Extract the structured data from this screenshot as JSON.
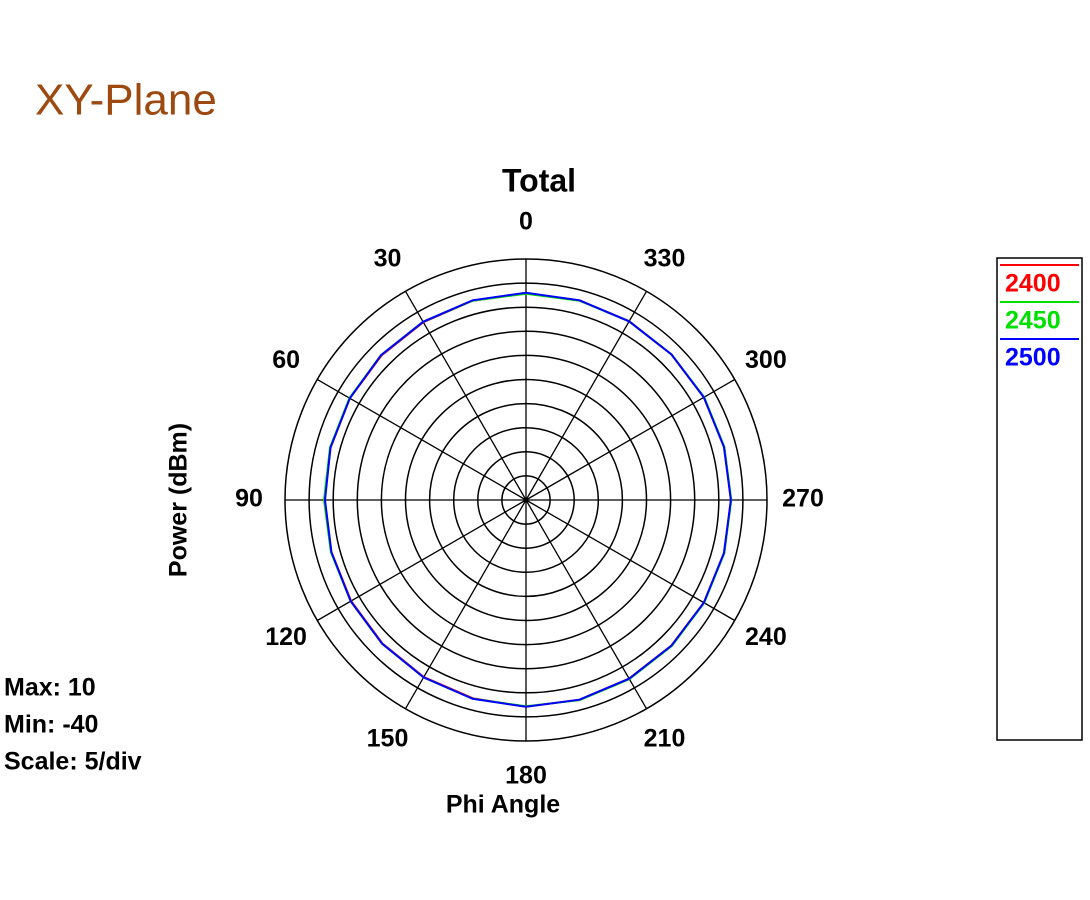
{
  "chart_data": {
    "type": "polar",
    "page_title": "XY-Plane",
    "title": "Total",
    "ylabel": "Power  (dBm)",
    "xlabel": "Phi Angle",
    "annotations": [
      "Max: 10",
      "Min: -40",
      "Scale: 5/div"
    ],
    "rlim": [
      -40,
      10
    ],
    "rticks": [
      -35,
      -30,
      -25,
      -20,
      -15,
      -10,
      -5,
      0,
      5,
      10
    ],
    "thetaticks": [
      0,
      30,
      60,
      90,
      120,
      150,
      180,
      210,
      240,
      270,
      300,
      330
    ],
    "theta_zero": "top",
    "theta_direction": "counterclockwise",
    "theta": [
      0,
      15,
      30,
      45,
      60,
      75,
      90,
      105,
      120,
      135,
      150,
      165,
      180,
      195,
      210,
      225,
      240,
      255,
      270,
      285,
      300,
      315,
      330,
      345
    ],
    "legend": "right",
    "series": [
      {
        "name": "2400",
        "color": "#ff0000",
        "values": [
          2.9,
          2.8,
          2.6,
          2.4,
          2.2,
          2.0,
          1.8,
          1.8,
          1.9,
          2.1,
          2.4,
          2.6,
          2.9,
          2.9,
          2.8,
          2.7,
          2.6,
          2.6,
          2.5,
          2.6,
          2.6,
          2.7,
          2.8,
          2.9
        ]
      },
      {
        "name": "2450",
        "color": "#00e000",
        "values": [
          2.8,
          2.8,
          2.7,
          2.5,
          2.3,
          2.1,
          1.9,
          1.9,
          2.0,
          2.2,
          2.5,
          2.7,
          2.8,
          3.0,
          2.9,
          2.8,
          2.7,
          2.6,
          2.6,
          2.6,
          2.7,
          2.7,
          2.8,
          2.8
        ]
      },
      {
        "name": "2500",
        "color": "#0000ff",
        "values": [
          3.0,
          2.9,
          2.7,
          2.5,
          2.2,
          2.0,
          1.7,
          1.8,
          2.0,
          2.2,
          2.5,
          2.7,
          2.9,
          2.9,
          2.8,
          2.7,
          2.6,
          2.5,
          2.5,
          2.5,
          2.6,
          2.7,
          2.8,
          2.9
        ]
      }
    ]
  }
}
